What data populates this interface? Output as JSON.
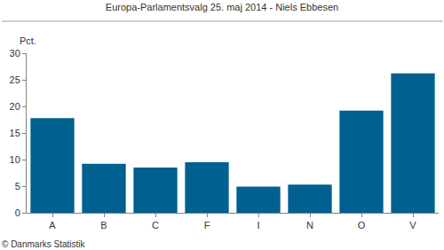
{
  "chart_data": {
    "type": "bar",
    "title": "Europa-Parlamentsvalg 25. maj 2014 - Niels Ebbesen",
    "ylabel": "Pct.",
    "source": "© Danmarks Statistik",
    "categories": [
      "A",
      "B",
      "C",
      "F",
      "I",
      "N",
      "O",
      "V"
    ],
    "values": [
      17.8,
      9.2,
      8.5,
      9.5,
      4.9,
      5.3,
      19.2,
      26.2
    ],
    "color": "#00608f",
    "ylim": [
      0,
      30
    ],
    "yticks": [
      0,
      5,
      10,
      15,
      20,
      25,
      30
    ],
    "grid": false
  }
}
